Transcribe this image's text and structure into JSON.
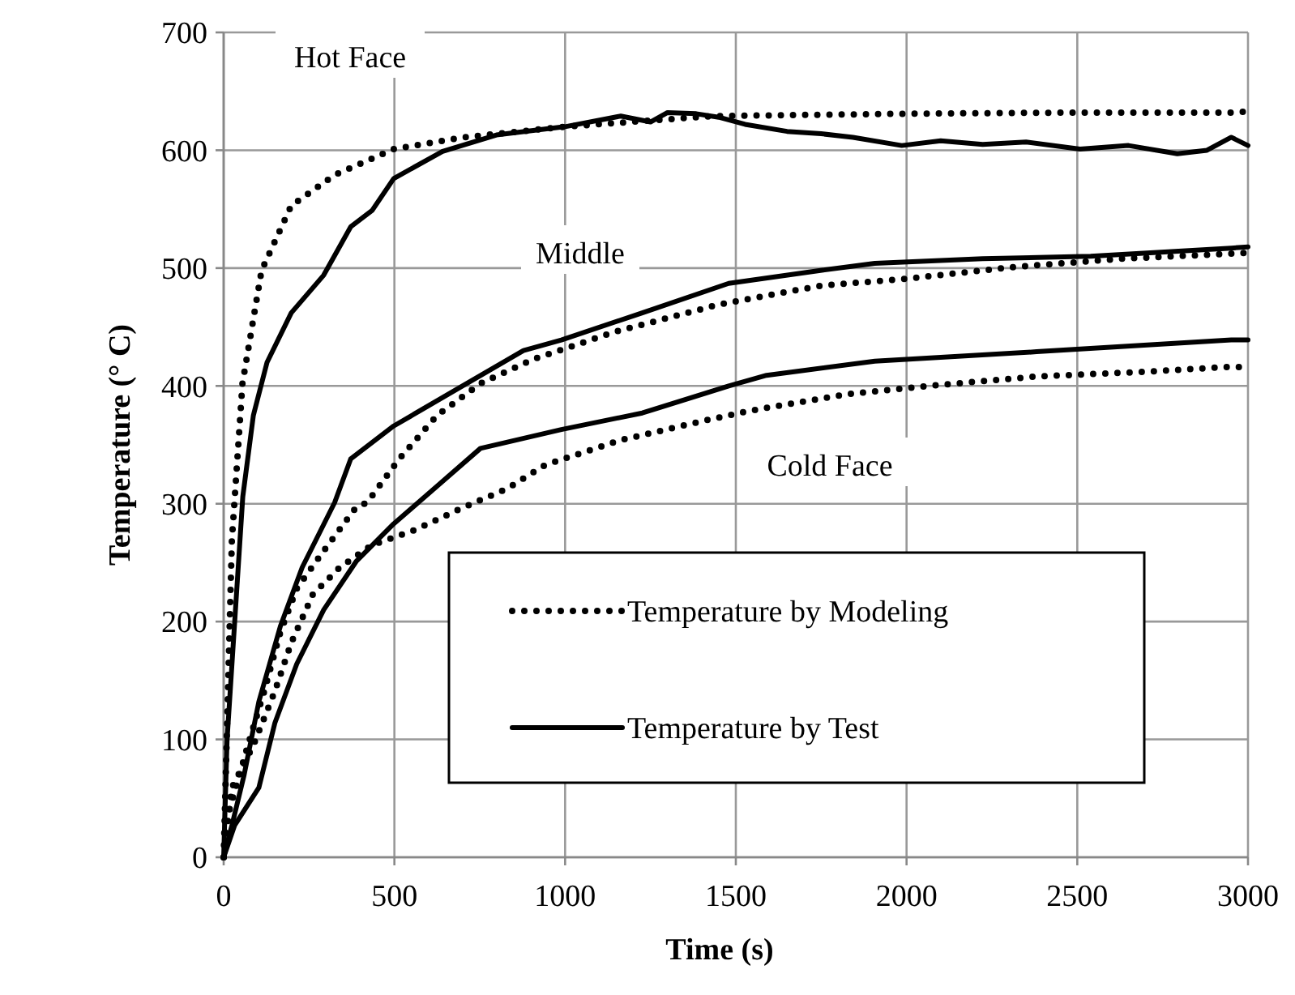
{
  "chart_data": {
    "type": "line",
    "xlabel": "Time (s)",
    "ylabel": "Temperature (° C)",
    "xlim": [
      0,
      3000
    ],
    "ylim": [
      0,
      700
    ],
    "xticks": [
      0,
      500,
      1000,
      1500,
      2000,
      2500,
      3000
    ],
    "yticks": [
      0,
      100,
      200,
      300,
      400,
      500,
      600,
      700
    ],
    "grid": true,
    "legend": "bottom right",
    "marker": "none",
    "series": [
      {
        "name": "Temperature by Modeling",
        "color": "#000000",
        "line_style": "dotted",
        "x": [
          0,
          24,
          55,
          111,
          198,
          325,
          498,
          704,
          1000,
          1432,
          2000,
          2500,
          2951,
          3000
        ],
        "values": [
          0,
          269,
          402,
          498,
          553,
          579,
          601,
          611,
          620,
          629,
          631,
          632,
          632,
          633
        ]
      },
      {
        "name": "Temperature by Test",
        "color": "#000000",
        "line_style": "solid",
        "x": [
          0,
          10,
          56,
          87,
          127,
          198,
          293,
          372,
          435,
          498,
          641,
          799,
          1000,
          1163,
          1250,
          1300,
          1384,
          1450,
          1527,
          1650,
          1750,
          1843,
          1986,
          2100,
          2223,
          2350,
          2508,
          2650,
          2793,
          2880,
          2951,
          3000
        ],
        "values": [
          0,
          100,
          306,
          375,
          420,
          462,
          494,
          535,
          549,
          576,
          599,
          613,
          620,
          629,
          624,
          632,
          631,
          628,
          622,
          616,
          614,
          611,
          604,
          608,
          605,
          607,
          601,
          604,
          597,
          600,
          611,
          604
        ]
      },
      {
        "color": "#000000",
        "line_style": "dotted",
        "x": [
          0,
          8,
          71,
          119,
          166,
          214,
          293,
          388,
          420,
          514,
          625,
          752,
          910,
          1147,
          1384,
          1448,
          1748,
          2001,
          2318,
          2634,
          2935,
          3000
        ],
        "values": [
          0,
          31,
          95,
          141,
          191,
          228,
          260,
          297,
          301,
          338,
          375,
          402,
          423,
          446,
          464,
          469,
          485,
          491,
          501,
          508,
          512,
          513
        ]
      },
      {
        "color": "#000000",
        "line_style": "solid",
        "x": [
          0,
          25,
          60,
          103,
          166,
          230,
          325,
          372,
          498,
          688,
          878,
          989,
          1226,
          1479,
          1748,
          1907,
          2223,
          2539,
          2951,
          3000
        ],
        "values": [
          0,
          28,
          70,
          132,
          196,
          246,
          301,
          338,
          366,
          398,
          430,
          439,
          462,
          487,
          498,
          504,
          508,
          510,
          517,
          518
        ]
      },
      {
        "color": "#000000",
        "line_style": "dotted",
        "x": [
          0,
          24,
          87,
          150,
          198,
          261,
          340,
          435,
          562,
          688,
          831,
          942,
          1163,
          1400,
          1543,
          1827,
          2064,
          2381,
          2698,
          2935,
          3000
        ],
        "values": [
          0,
          59,
          95,
          141,
          182,
          223,
          246,
          265,
          278,
          295,
          313,
          333,
          354,
          370,
          379,
          393,
          400,
          408,
          412,
          416,
          416
        ]
      },
      {
        "color": "#000000",
        "line_style": "solid",
        "x": [
          0,
          32,
          103,
          150,
          214,
          293,
          388,
          498,
          625,
          752,
          989,
          1226,
          1479,
          1590,
          1907,
          2381,
          2951,
          3000
        ],
        "values": [
          0,
          27,
          59,
          114,
          164,
          210,
          251,
          283,
          315,
          347,
          363,
          377,
          400,
          409,
          421,
          429,
          439,
          439
        ]
      }
    ],
    "annotations": [
      "Hot Face",
      "Middle",
      "Cold Face"
    ]
  }
}
